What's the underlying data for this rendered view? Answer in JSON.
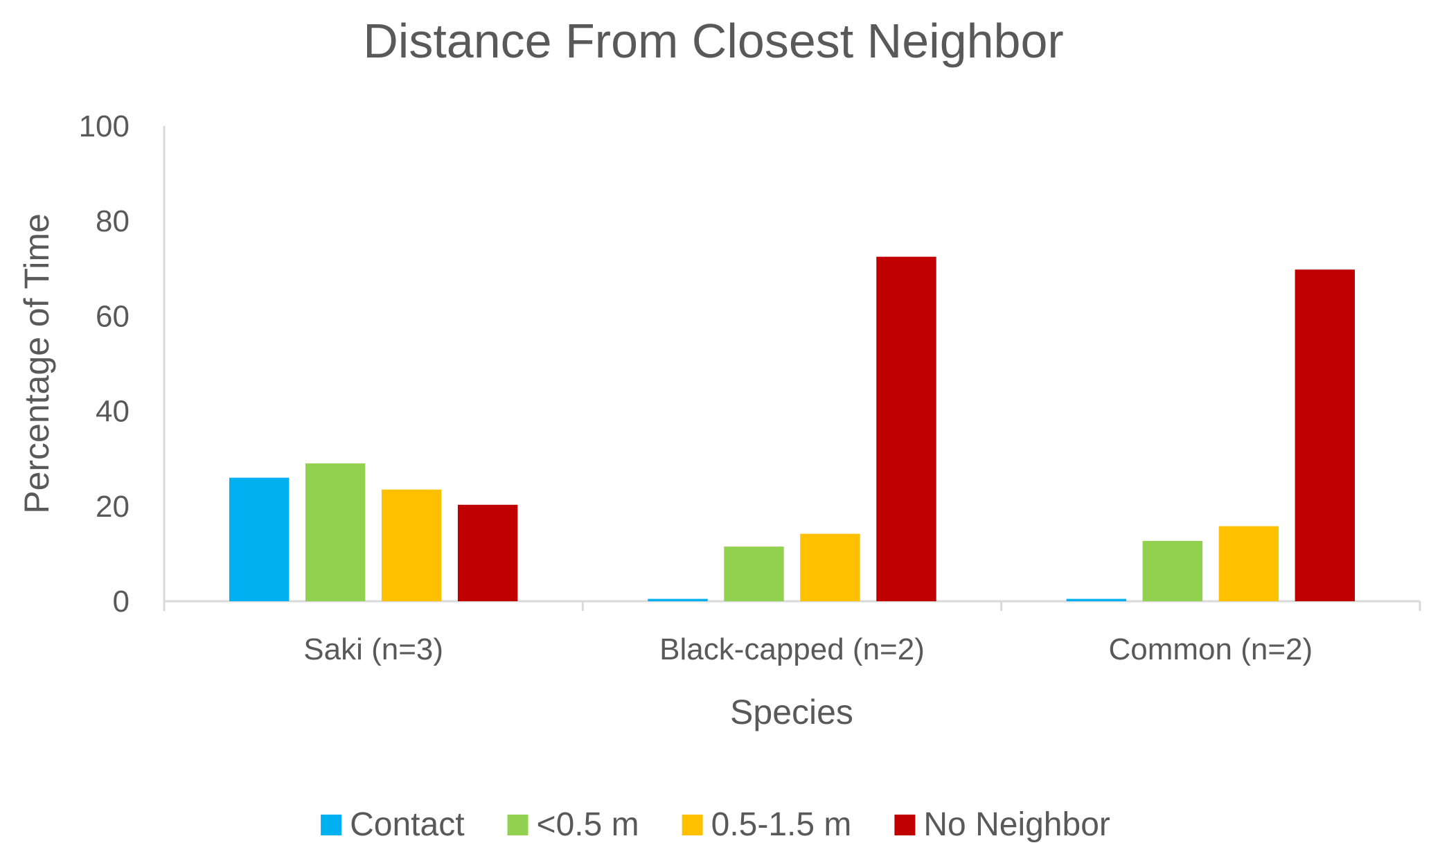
{
  "chart_data": {
    "type": "bar",
    "title": "Distance From Closest Neighbor",
    "xlabel": "Species",
    "ylabel": "Percentage of Time",
    "categories": [
      "Saki (n=3)",
      "Black-capped (n=2)",
      "Common (n=2)"
    ],
    "series": [
      {
        "name": "Contact",
        "color": "#00b0f0",
        "values": [
          26,
          0.5,
          0.5
        ]
      },
      {
        "name": "<0.5 m",
        "color": "#92d050",
        "values": [
          29,
          11.5,
          12.7
        ]
      },
      {
        "name": "0.5-1.5 m",
        "color": "#ffc000",
        "values": [
          23.5,
          14.2,
          15.8
        ]
      },
      {
        "name": "No Neighbor",
        "color": "#c00000",
        "values": [
          20.3,
          72.5,
          69.8
        ]
      }
    ],
    "ylim": [
      0,
      100
    ],
    "yticks": [
      0,
      20,
      40,
      60,
      80,
      100
    ],
    "grid": false,
    "legend": "bottom"
  }
}
